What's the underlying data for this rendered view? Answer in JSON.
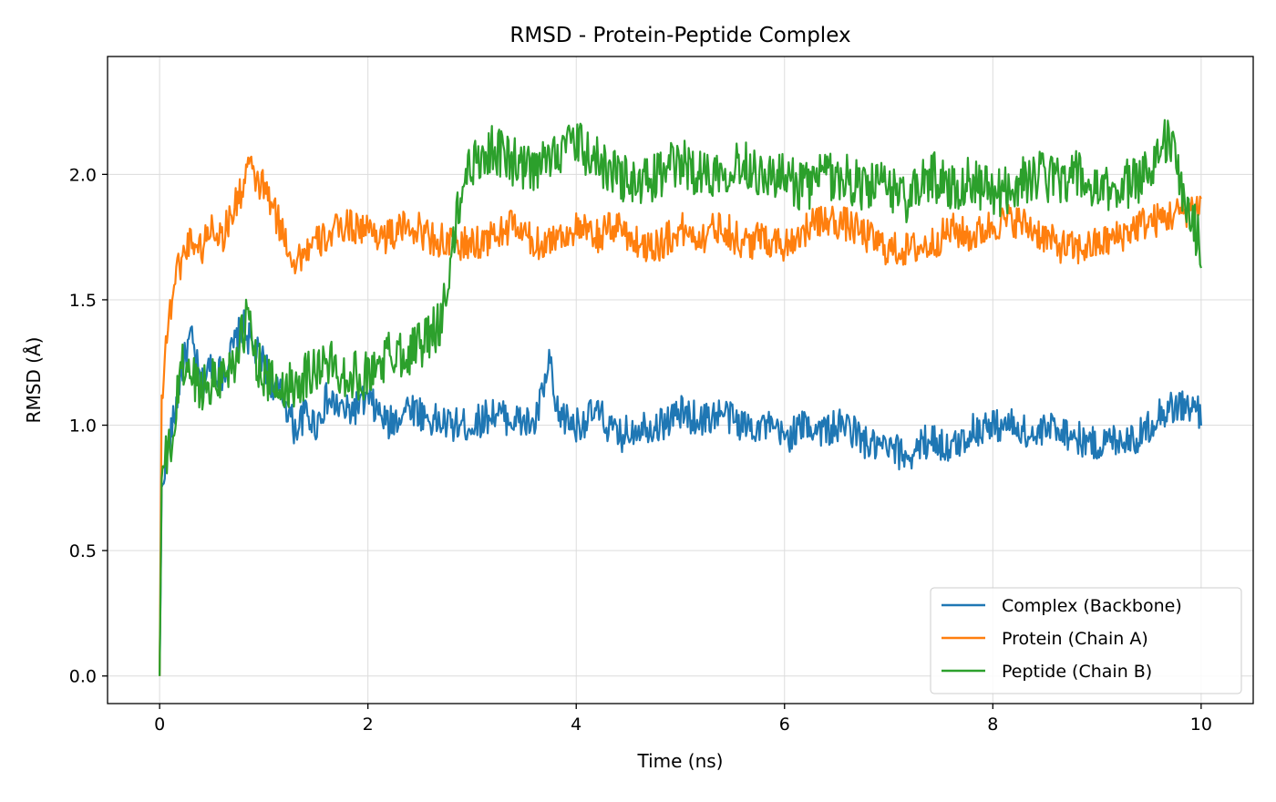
{
  "chart_data": {
    "type": "line",
    "title": "RMSD - Protein-Peptide Complex",
    "xlabel": "Time (ns)",
    "ylabel": "RMSD (Å)",
    "xlim": [
      -0.5,
      10.5
    ],
    "ylim": [
      -0.11,
      2.47
    ],
    "x_ticks": [
      0,
      2,
      4,
      6,
      8,
      10
    ],
    "y_ticks": [
      0.0,
      0.5,
      1.0,
      1.5,
      2.0
    ],
    "x_tick_labels": [
      "0",
      "2",
      "4",
      "6",
      "8",
      "10"
    ],
    "y_tick_labels": [
      "0.0",
      "0.5",
      "1.0",
      "1.5",
      "2.0"
    ],
    "grid": true,
    "legend_position": "lower-right",
    "series": [
      {
        "name": "Complex (Backbone)",
        "color": "#1f77b4",
        "x": [
          0,
          0.02,
          0.05,
          0.1,
          0.15,
          0.2,
          0.3,
          0.4,
          0.5,
          0.6,
          0.7,
          0.8,
          0.9,
          1.0,
          1.1,
          1.2,
          1.3,
          1.4,
          1.5,
          1.6,
          1.8,
          2.0,
          2.2,
          2.4,
          2.6,
          2.8,
          3.0,
          3.2,
          3.4,
          3.6,
          3.75,
          3.8,
          4.0,
          4.2,
          4.4,
          4.6,
          4.8,
          5.0,
          5.2,
          5.4,
          5.6,
          5.8,
          6.0,
          6.2,
          6.4,
          6.6,
          6.8,
          7.0,
          7.2,
          7.4,
          7.6,
          7.8,
          8.0,
          8.2,
          8.4,
          8.6,
          8.8,
          9.0,
          9.2,
          9.4,
          9.6,
          9.8,
          10.0
        ],
        "y": [
          0.0,
          0.72,
          0.85,
          0.95,
          1.05,
          1.2,
          1.35,
          1.15,
          1.25,
          1.2,
          1.3,
          1.4,
          1.3,
          1.25,
          1.15,
          1.1,
          0.98,
          1.05,
          1.0,
          1.1,
          1.05,
          1.1,
          1.0,
          1.08,
          1.02,
          1.0,
          1.0,
          1.05,
          1.02,
          1.0,
          1.25,
          1.05,
          1.0,
          1.05,
          0.95,
          1.0,
          1.0,
          1.05,
          1.02,
          1.05,
          1.0,
          1.0,
          0.95,
          1.0,
          0.98,
          1.0,
          0.92,
          0.9,
          0.88,
          0.95,
          0.9,
          0.98,
          1.0,
          1.0,
          0.95,
          1.0,
          0.95,
          0.92,
          0.95,
          0.95,
          1.05,
          1.08,
          1.05
        ]
      },
      {
        "name": "Protein (Chain A)",
        "color": "#ff7f0e",
        "x": [
          0,
          0.02,
          0.05,
          0.1,
          0.15,
          0.2,
          0.3,
          0.4,
          0.5,
          0.6,
          0.7,
          0.8,
          0.85,
          0.9,
          1.0,
          1.1,
          1.2,
          1.3,
          1.4,
          1.5,
          1.6,
          1.8,
          2.0,
          2.2,
          2.4,
          2.6,
          2.8,
          3.0,
          3.2,
          3.4,
          3.6,
          3.8,
          4.0,
          4.2,
          4.4,
          4.6,
          4.8,
          5.0,
          5.2,
          5.4,
          5.6,
          5.8,
          6.0,
          6.2,
          6.4,
          6.6,
          6.8,
          7.0,
          7.2,
          7.4,
          7.6,
          7.8,
          8.0,
          8.2,
          8.4,
          8.6,
          8.8,
          9.0,
          9.2,
          9.4,
          9.6,
          9.8,
          10.0
        ],
        "y": [
          0.0,
          1.1,
          1.3,
          1.45,
          1.6,
          1.65,
          1.75,
          1.7,
          1.8,
          1.75,
          1.85,
          1.95,
          2.05,
          1.98,
          1.95,
          1.85,
          1.75,
          1.65,
          1.7,
          1.72,
          1.75,
          1.8,
          1.78,
          1.75,
          1.8,
          1.75,
          1.72,
          1.72,
          1.75,
          1.8,
          1.72,
          1.75,
          1.78,
          1.75,
          1.8,
          1.72,
          1.72,
          1.78,
          1.75,
          1.8,
          1.72,
          1.75,
          1.72,
          1.78,
          1.82,
          1.8,
          1.75,
          1.7,
          1.7,
          1.72,
          1.78,
          1.75,
          1.8,
          1.82,
          1.78,
          1.72,
          1.7,
          1.72,
          1.75,
          1.8,
          1.82,
          1.85,
          1.88
        ]
      },
      {
        "name": "Peptide (Chain B)",
        "color": "#2ca02c",
        "x": [
          0,
          0.02,
          0.05,
          0.1,
          0.15,
          0.2,
          0.3,
          0.4,
          0.5,
          0.6,
          0.7,
          0.8,
          0.85,
          0.9,
          1.0,
          1.1,
          1.2,
          1.4,
          1.6,
          1.8,
          2.0,
          2.2,
          2.4,
          2.6,
          2.7,
          2.8,
          2.9,
          3.0,
          3.2,
          3.4,
          3.6,
          3.8,
          4.0,
          4.2,
          4.4,
          4.6,
          4.8,
          5.0,
          5.2,
          5.4,
          5.6,
          5.8,
          6.0,
          6.2,
          6.4,
          6.6,
          6.8,
          7.0,
          7.2,
          7.4,
          7.6,
          7.8,
          8.0,
          8.2,
          8.4,
          8.6,
          8.8,
          9.0,
          9.2,
          9.4,
          9.6,
          9.7,
          9.8,
          10.0
        ],
        "y": [
          0.0,
          0.78,
          0.85,
          0.9,
          1.0,
          1.25,
          1.2,
          1.15,
          1.18,
          1.2,
          1.25,
          1.35,
          1.45,
          1.3,
          1.2,
          1.15,
          1.15,
          1.2,
          1.25,
          1.2,
          1.2,
          1.28,
          1.3,
          1.35,
          1.42,
          1.65,
          1.95,
          2.05,
          2.1,
          2.05,
          2.0,
          2.1,
          2.12,
          2.05,
          2.0,
          1.95,
          2.0,
          2.05,
          2.0,
          2.02,
          2.05,
          2.0,
          1.98,
          1.95,
          2.0,
          1.98,
          1.95,
          1.95,
          1.9,
          2.0,
          1.95,
          1.98,
          1.92,
          1.95,
          2.0,
          1.98,
          2.0,
          1.92,
          1.95,
          1.98,
          2.1,
          2.15,
          1.95,
          1.72
        ]
      }
    ]
  }
}
